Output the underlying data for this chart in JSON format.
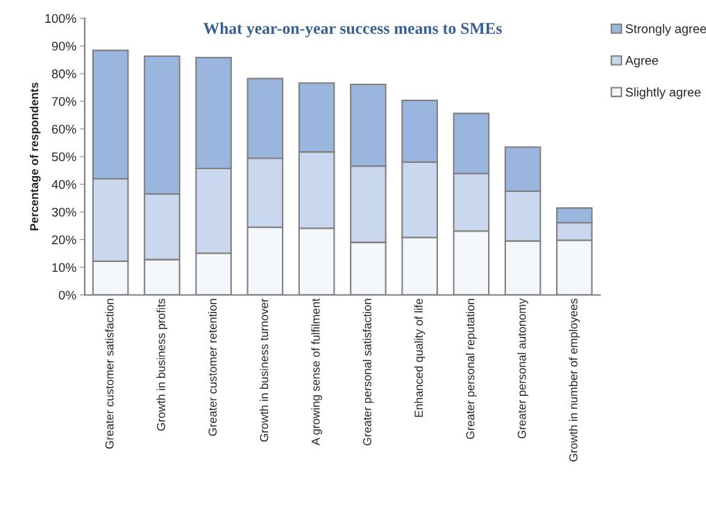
{
  "chart_data": {
    "type": "bar",
    "title": "What year-on-year success means to SMEs",
    "ylabel": "Percentage of respondents",
    "categories": [
      "Greater customer satisfaction",
      "Growth in business profits",
      "Greater customer retention",
      "Growth in business turnover",
      "A growing sense of fulfilment",
      "Greater personal satisfaction",
      "Enhanced quality of life",
      "Greater personal reputation",
      "Greater personal autonomy",
      "Growth in number of employees"
    ],
    "stacked": true,
    "series": [
      {
        "name": "Slightly agree",
        "color": "#f4f7fc",
        "values": [
          12.2,
          12.8,
          15.1,
          24.5,
          24.1,
          19.0,
          20.8,
          23.1,
          19.5,
          19.8
        ]
      },
      {
        "name": "Agree",
        "color": "#c9d8ee",
        "values": [
          29.8,
          23.7,
          30.6,
          24.9,
          27.6,
          27.6,
          27.2,
          20.8,
          18.0,
          6.3
        ]
      },
      {
        "name": "Strongly agree",
        "color": "#9ab6de",
        "values": [
          46.4,
          49.8,
          40.1,
          28.8,
          24.9,
          29.5,
          22.3,
          21.7,
          15.9,
          5.3
        ]
      }
    ],
    "ylim": [
      0,
      100
    ],
    "yticks": [
      {
        "value": 0,
        "label": "0%"
      },
      {
        "value": 10,
        "label": "10%"
      },
      {
        "value": 20,
        "label": "20%"
      },
      {
        "value": 30,
        "label": "30%"
      },
      {
        "value": 40,
        "label": "40%"
      },
      {
        "value": 50,
        "label": "50%"
      },
      {
        "value": 60,
        "label": "60%"
      },
      {
        "value": 70,
        "label": "70%"
      },
      {
        "value": 80,
        "label": "80%"
      },
      {
        "value": 90,
        "label": "90%"
      },
      {
        "value": 100,
        "label": "100%"
      }
    ],
    "grid": false,
    "legend": "top right"
  }
}
